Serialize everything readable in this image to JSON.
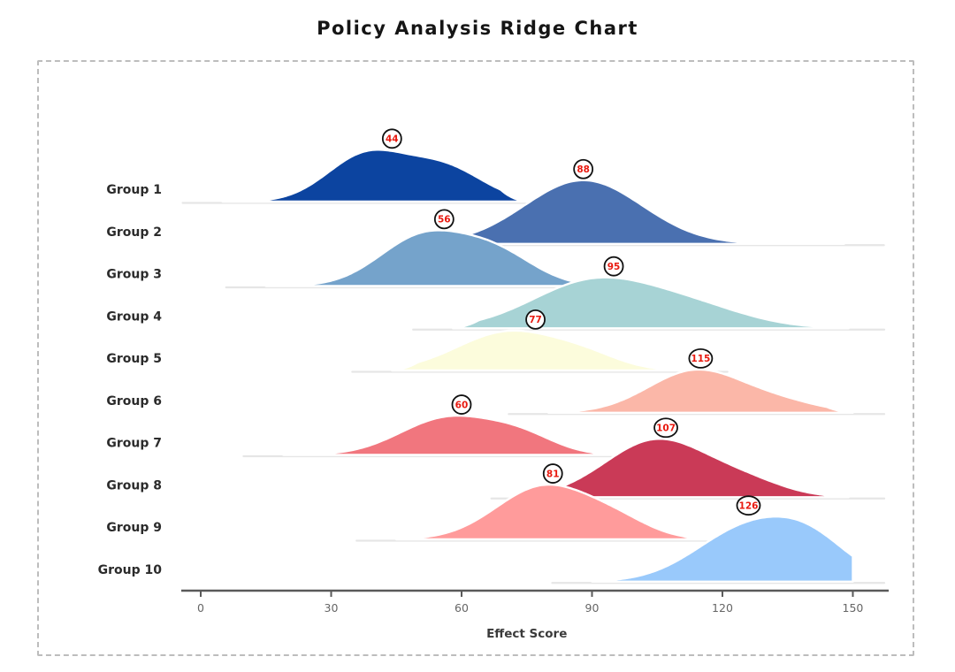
{
  "chart_data": {
    "type": "area",
    "variant": "ridgeline",
    "title": "Policy Analysis Ridge Chart",
    "xlabel": "Effect Score",
    "x_ticks": [
      0,
      30,
      60,
      90,
      120,
      150
    ],
    "x_axis_range": [
      0,
      150
    ],
    "legend_position": "none",
    "grid": false,
    "groups": [
      {
        "label": "Group 1",
        "color": "#0c44a0",
        "peak_x": 44,
        "x_start": 5,
        "x_end": 75,
        "clip_end": false,
        "components": [
          [
            38,
            9,
            52
          ],
          [
            56,
            9,
            38
          ]
        ]
      },
      {
        "label": "Group 2",
        "color": "#4a70b0",
        "peak_x": 88,
        "x_start": 55,
        "x_end": 148,
        "clip_end": false,
        "components": [
          [
            88,
            13.5,
            72
          ]
        ]
      },
      {
        "label": "Group 3",
        "color": "#75a3cb",
        "peak_x": 56,
        "x_start": 15,
        "x_end": 96,
        "clip_end": false,
        "components": [
          [
            51,
            10,
            55
          ],
          [
            68,
            9,
            35
          ]
        ]
      },
      {
        "label": "Group 4",
        "color": "#a7d3d5",
        "peak_x": 95,
        "x_start": 58,
        "x_end": 149,
        "clip_end": false,
        "components": [
          [
            90,
            14,
            52
          ],
          [
            113,
            13,
            22
          ]
        ]
      },
      {
        "label": "Group 5",
        "color": "#fcfcdc",
        "peak_x": 77,
        "x_start": 44,
        "x_end": 112,
        "clip_end": false,
        "components": [
          [
            71,
            12,
            44
          ],
          [
            89,
            8,
            12
          ]
        ]
      },
      {
        "label": "Group 6",
        "color": "#fbb7a8",
        "peak_x": 115,
        "x_start": 80,
        "x_end": 150,
        "clip_end": false,
        "components": [
          [
            114,
            11,
            48
          ],
          [
            134,
            9,
            10
          ]
        ]
      },
      {
        "label": "Group 7",
        "color": "#f1767e",
        "peak_x": 60,
        "x_start": 19,
        "x_end": 96,
        "clip_end": false,
        "components": [
          [
            57,
            11,
            42
          ],
          [
            74,
            8,
            18
          ]
        ]
      },
      {
        "label": "Group 8",
        "color": "#ca3a57",
        "peak_x": 107,
        "x_start": 76,
        "x_end": 149,
        "clip_end": false,
        "components": [
          [
            105,
            12,
            65
          ],
          [
            126,
            9,
            14
          ]
        ]
      },
      {
        "label": "Group 9",
        "color": "#ff9b9b",
        "peak_x": 81,
        "x_start": 45,
        "x_end": 117,
        "clip_end": false,
        "components": [
          [
            79,
            11,
            60
          ],
          [
            96,
            8,
            16
          ]
        ]
      },
      {
        "label": "Group 10",
        "color": "#99c9fb",
        "peak_x": 126,
        "x_start": 90,
        "x_end": 150,
        "clip_end": true,
        "components": [
          [
            126,
            12,
            60
          ],
          [
            141,
            9,
            34
          ]
        ]
      }
    ],
    "annotation_values": [
      44,
      88,
      56,
      95,
      77,
      115,
      60,
      107,
      81,
      126
    ],
    "colors": {
      "annotation_text": "#e8190f",
      "annotation_circle_fill": "#ffffff",
      "annotation_circle_stroke": "#111111",
      "axis": "#5a5a5a",
      "tick_label": "#666666",
      "group_label": "#2b2b2b",
      "xlabel": "#3a3a3a",
      "border": "#bdbdbd",
      "background": "#ffffff",
      "ridge_outline": "#ffffff",
      "baseline_shadow": "#e4e4e4"
    }
  }
}
